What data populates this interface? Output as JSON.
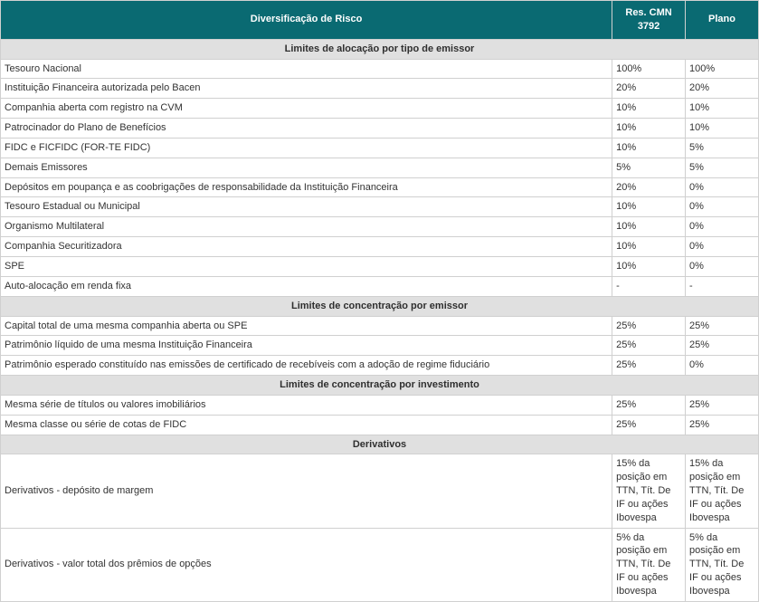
{
  "header": {
    "title": "Diversificação de Risco",
    "col_res": "Res. CMN 3792",
    "col_plano": "Plano"
  },
  "sections": [
    {
      "title": "Limites de alocação por tipo de emissor",
      "rows": [
        {
          "label": "Tesouro Nacional",
          "res": "100%",
          "plano": "100%"
        },
        {
          "label": "Instituição Financeira autorizada pelo Bacen",
          "res": "20%",
          "plano": "20%"
        },
        {
          "label": "Companhia aberta com registro na CVM",
          "res": "10%",
          "plano": "10%"
        },
        {
          "label": "Patrocinador do Plano de Benefícios",
          "res": "10%",
          "plano": "10%"
        },
        {
          "label": "FIDC e FICFIDC (FOR-TE FIDC)",
          "res": "10%",
          "plano": "5%"
        },
        {
          "label": "Demais Emissores",
          "res": "5%",
          "plano": "5%"
        },
        {
          "label": "Depósitos em poupança e as coobrigações de responsabilidade da Instituição Financeira",
          "res": "20%",
          "plano": "0%"
        },
        {
          "label": "Tesouro Estadual ou Municipal",
          "res": "10%",
          "plano": "0%"
        },
        {
          "label": "Organismo Multilateral",
          "res": "10%",
          "plano": "0%"
        },
        {
          "label": "Companhia Securitizadora",
          "res": "10%",
          "plano": "0%"
        },
        {
          "label": "SPE",
          "res": "10%",
          "plano": "0%"
        },
        {
          "label": "Auto-alocação em renda fixa",
          "res": "-",
          "plano": "-"
        }
      ]
    },
    {
      "title": "Limites de concentração por emissor",
      "rows": [
        {
          "label": "Capital total de uma mesma companhia aberta ou SPE",
          "res": "25%",
          "plano": "25%"
        },
        {
          "label": "Patrimônio líquido de uma mesma Instituição Financeira",
          "res": "25%",
          "plano": "25%"
        },
        {
          "label": "Patrimônio esperado constituído nas emissões de certificado de recebíveis com a adoção de regime fiduciário",
          "res": "25%",
          "plano": "0%"
        }
      ]
    },
    {
      "title": "Limites de concentração por investimento",
      "rows": [
        {
          "label": "Mesma série de títulos ou valores imobiliários",
          "res": "25%",
          "plano": "25%"
        },
        {
          "label": "Mesma classe ou série de cotas de FIDC",
          "res": "25%",
          "plano": "25%"
        }
      ]
    },
    {
      "title": "Derivativos",
      "rows": [
        {
          "label": "Derivativos - depósito de margem",
          "res": "15% da posição em TTN, Tít. De IF ou ações Ibovespa",
          "plano": "15% da posição em TTN, Tít. De IF ou ações Ibovespa",
          "textcell": true
        },
        {
          "label": "Derivativos - valor total dos prêmios de opções",
          "res": "5% da posição em TTN, Tít. De IF ou ações Ibovespa",
          "plano": "5% da posição em TTN, Tít. De IF ou ações Ibovespa",
          "textcell": true
        }
      ]
    }
  ]
}
